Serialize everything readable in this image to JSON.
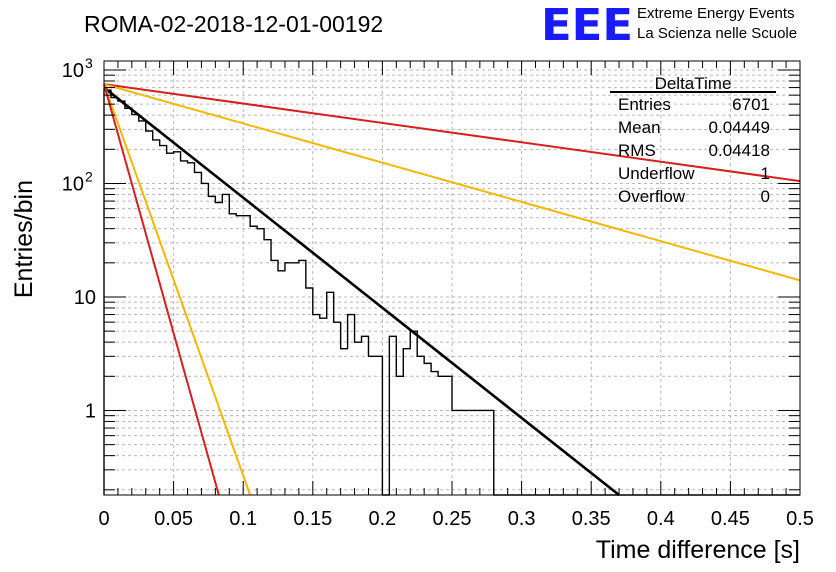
{
  "chart_data": {
    "type": "histogram",
    "title": "ROMA-02-2018-12-01-00192",
    "xlabel": "Time difference [s]",
    "ylabel": "Entries/bin",
    "xlim": [
      0,
      0.5
    ],
    "ylim": [
      0.18,
      1200
    ],
    "y_scale": "log",
    "grid": true,
    "x_ticks": [
      "0",
      "0.05",
      "0.1",
      "0.15",
      "0.2",
      "0.25",
      "0.3",
      "0.35",
      "0.4",
      "0.45",
      "0.5"
    ],
    "y_ticks": [
      {
        "value": 1,
        "label": "1"
      },
      {
        "value": 10,
        "label": "10"
      },
      {
        "value": 100,
        "label": "10",
        "exp": "2"
      },
      {
        "value": 1000,
        "label": "10",
        "exp": "3"
      }
    ],
    "histogram": {
      "bin_width": 0.005,
      "values": [
        664,
        572,
        532,
        460,
        405,
        356,
        290,
        242,
        216,
        185,
        190,
        158,
        152,
        125,
        100,
        77,
        68,
        80,
        54,
        52,
        52,
        42,
        40,
        32,
        21,
        17,
        20,
        20,
        21,
        12,
        7,
        6.5,
        11,
        6,
        3.5,
        7,
        4,
        4.5,
        3,
        3,
        0,
        4.5,
        2,
        3.5,
        5,
        3,
        2.6,
        2.2,
        2,
        2,
        1,
        1,
        1,
        1,
        1,
        1,
        0,
        0,
        0,
        0,
        0,
        0,
        0,
        0,
        0,
        0,
        0,
        0,
        0,
        0,
        0,
        0,
        0,
        0,
        0,
        0,
        0,
        0,
        0,
        0,
        0,
        0,
        0,
        0,
        0,
        0,
        0,
        0,
        0,
        0,
        0,
        0,
        0,
        0,
        0,
        0,
        0,
        0,
        0,
        0
      ]
    },
    "series": [
      {
        "color": "#000000",
        "x": [
          0,
          0.37
        ],
        "y": [
          700,
          0.18
        ]
      },
      {
        "color": "#d42020",
        "x": [
          0,
          0.5
        ],
        "y": [
          750,
          105
        ]
      },
      {
        "color": "#f2b800",
        "x": [
          0,
          0.5
        ],
        "y": [
          750,
          14
        ]
      },
      {
        "color": "#f2b800",
        "x": [
          0,
          0.105
        ],
        "y": [
          750,
          0.18
        ]
      },
      {
        "color": "#d42020",
        "x": [
          0,
          0.0825
        ],
        "y": [
          750,
          0.18
        ]
      }
    ],
    "stats_box": {
      "title": "DeltaTime",
      "rows": [
        {
          "label": "Entries",
          "value": "6701"
        },
        {
          "label": "Mean",
          "value": "0.04449"
        },
        {
          "label": "RMS",
          "value": "0.04418"
        },
        {
          "label": "Underflow",
          "value": "1"
        },
        {
          "label": "Overflow",
          "value": "0"
        }
      ]
    },
    "logo": {
      "mark": "EEE",
      "line1": "Extreme Energy Events",
      "line2": "La Scienza nelle Scuole",
      "color": "#1a1aff"
    }
  }
}
